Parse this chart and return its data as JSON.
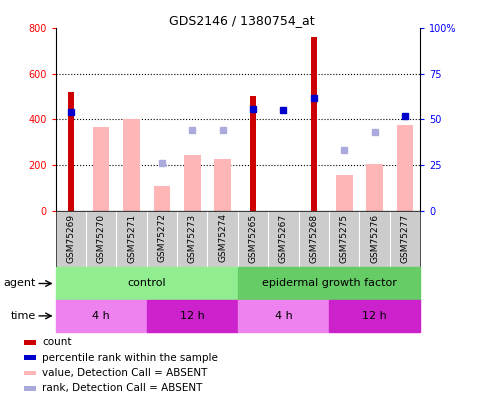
{
  "title": "GDS2146 / 1380754_at",
  "samples": [
    "GSM75269",
    "GSM75270",
    "GSM75271",
    "GSM75272",
    "GSM75273",
    "GSM75274",
    "GSM75265",
    "GSM75267",
    "GSM75268",
    "GSM75275",
    "GSM75276",
    "GSM75277"
  ],
  "count_values": [
    520,
    null,
    null,
    null,
    null,
    null,
    505,
    null,
    760,
    null,
    null,
    null
  ],
  "absent_value_bars": [
    null,
    365,
    400,
    110,
    245,
    228,
    null,
    null,
    null,
    155,
    205,
    375
  ],
  "percentile_rank": [
    54,
    null,
    null,
    null,
    null,
    null,
    56,
    55,
    62,
    null,
    null,
    52
  ],
  "absent_rank": [
    null,
    null,
    null,
    26,
    44,
    44,
    null,
    null,
    null,
    33,
    43,
    null
  ],
  "ylim": [
    0,
    800
  ],
  "y2lim": [
    0,
    100
  ],
  "yticks": [
    0,
    200,
    400,
    600,
    800
  ],
  "y2ticks": [
    0,
    25,
    50,
    75,
    100
  ],
  "ytick_labels": [
    "0",
    "200",
    "400",
    "600",
    "800"
  ],
  "y2tick_labels": [
    "0",
    "25",
    "50",
    "75",
    "100%"
  ],
  "colors": {
    "count_bar": "#CC0000",
    "absent_bar": "#FFB6B6",
    "percentile_marker": "#0000CC",
    "absent_rank_marker": "#AAAADD",
    "agent_control": "#90EE90",
    "agent_egf": "#66CC66",
    "time_4h": "#EE82EE",
    "time_12h": "#CC22CC",
    "tick_label_bg": "#CCCCCC",
    "grid_line": "#000000"
  },
  "time_colors": [
    "#EE82EE",
    "#CC22CC",
    "#EE82EE",
    "#CC22CC"
  ],
  "time_ranges": [
    [
      0,
      3
    ],
    [
      3,
      6
    ],
    [
      6,
      9
    ],
    [
      9,
      12
    ]
  ],
  "time_labels": [
    "4 h",
    "12 h",
    "4 h",
    "12 h"
  ],
  "legend_colors": [
    "#CC0000",
    "#0000CC",
    "#FFB6B6",
    "#AAAADD"
  ],
  "legend_labels": [
    "count",
    "percentile rank within the sample",
    "value, Detection Call = ABSENT",
    "rank, Detection Call = ABSENT"
  ]
}
